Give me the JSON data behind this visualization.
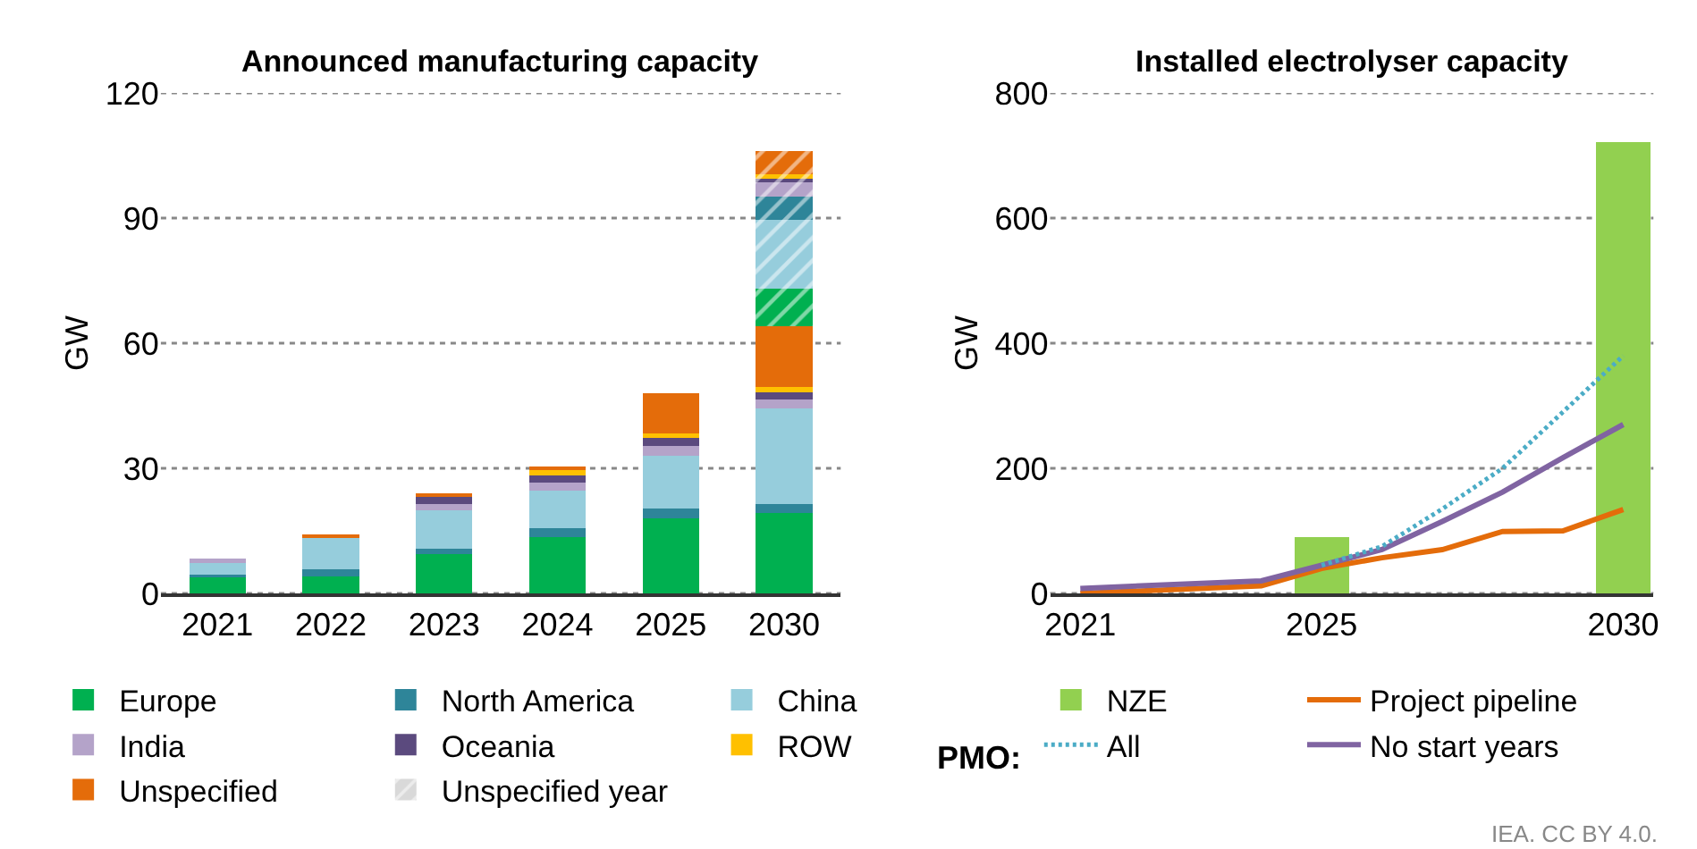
{
  "chart_data": [
    {
      "type": "bar",
      "title": "Announced manufacturing capacity",
      "ylabel": "GW",
      "categories": [
        "2021",
        "2022",
        "2023",
        "2024",
        "2025",
        "2030"
      ],
      "stacked": true,
      "ylim": [
        0,
        120
      ],
      "yticks": [
        0,
        30,
        60,
        90,
        120
      ],
      "grid": "y",
      "legend": "bottom",
      "series": [
        {
          "name": "Europe",
          "color": "#00b050",
          "values": [
            3.9,
            4.0,
            9.4,
            13.6,
            18.0,
            19.3
          ]
        },
        {
          "name": "North America",
          "color": "#2e8599",
          "values": [
            0.7,
            1.7,
            1.4,
            2.0,
            2.3,
            2.1
          ]
        },
        {
          "name": "China",
          "color": "#96cddc",
          "values": [
            3.1,
            7.7,
            9.1,
            9.0,
            12.7,
            22.9
          ]
        },
        {
          "name": "India",
          "color": "#b4a3c9",
          "values": [
            0.6,
            null,
            1.6,
            1.9,
            2.3,
            2.3
          ]
        },
        {
          "name": "Oceania",
          "color": "#5b4a7e",
          "values": [
            null,
            null,
            1.9,
            1.7,
            1.9,
            1.7
          ]
        },
        {
          "name": "ROW",
          "color": "#ffc000",
          "values": [
            null,
            null,
            null,
            1.4,
            1.1,
            1.1
          ]
        },
        {
          "name": "Unspecified",
          "color": "#e46c0a",
          "values": [
            null,
            0.6,
            0.3,
            0.6,
            9.7,
            14.6
          ]
        },
        {
          "color": "#00b050",
          "values": [
            null,
            null,
            null,
            null,
            null,
            9.1
          ]
        },
        {
          "color": "#96cddc",
          "values": [
            null,
            null,
            null,
            null,
            null,
            16.4
          ]
        },
        {
          "color": "#2e8599",
          "values": [
            null,
            null,
            null,
            null,
            null,
            5.7
          ]
        },
        {
          "color": "#b4a3c9",
          "values": [
            null,
            null,
            null,
            null,
            null,
            3.3
          ]
        },
        {
          "color": "#5b4a7e",
          "values": [
            null,
            null,
            null,
            null,
            null,
            1.0
          ]
        },
        {
          "color": "#ffc000",
          "values": [
            null,
            null,
            null,
            null,
            null,
            0.9
          ]
        },
        {
          "color": "#e46c0a",
          "values": [
            null,
            null,
            null,
            null,
            null,
            5.6
          ]
        },
        {
          "name": "Unspecified year",
          "color": "#d9d9d9",
          "values": [
            null,
            null,
            null,
            null,
            null,
            null
          ]
        }
      ]
    },
    {
      "type": "bar",
      "title": "Installed electrolyser capacity",
      "ylabel": "GW",
      "xlim": [
        2020.5,
        2030.5
      ],
      "xticks": [
        2021,
        2025,
        2030
      ],
      "ylim": [
        0,
        800
      ],
      "yticks": [
        0,
        200,
        400,
        600,
        800
      ],
      "grid": "y",
      "legend": "bottom",
      "annotations": [
        "PMO:",
        "IEA. CC BY 4.0."
      ],
      "series": [
        {
          "name": "NZE",
          "color": "#92d050",
          "x": [
            2025,
            2030
          ],
          "values": [
            90,
            721
          ]
        },
        {
          "name": "Project pipeline",
          "type": "line",
          "color": "#e46c0a",
          "line_style": "solid",
          "x": [
            2021,
            2024,
            2025,
            2026,
            2027,
            2028,
            2029,
            2030
          ],
          "values": [
            0,
            12,
            40,
            57,
            70,
            99,
            100,
            134
          ]
        },
        {
          "name": "All",
          "type": "line",
          "color": "#4bacc6",
          "line_style": "dotted",
          "x": [
            2025,
            2026,
            2027,
            2028,
            2029,
            2030
          ],
          "values": [
            45,
            75,
            135,
            200,
            290,
            380
          ]
        },
        {
          "name": "No start years",
          "type": "line",
          "color": "#8064a2",
          "line_style": "solid",
          "x": [
            2021,
            2024,
            2025,
            2026,
            2027,
            2028,
            2029,
            2030
          ],
          "values": [
            8,
            20,
            45,
            70,
            115,
            162,
            217,
            270
          ]
        }
      ]
    }
  ]
}
